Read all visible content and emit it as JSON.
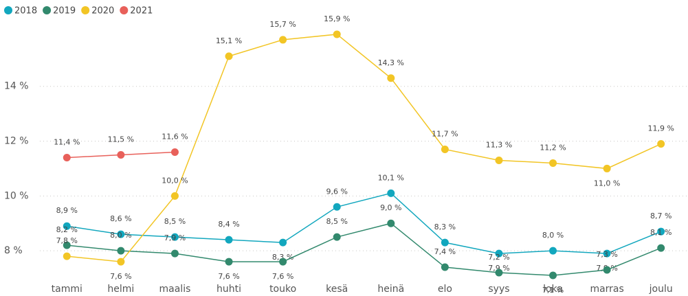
{
  "chart_data": {
    "type": "line",
    "categories": [
      "tammi",
      "helmi",
      "maalis",
      "huhti",
      "touko",
      "kesä",
      "heinä",
      "elo",
      "syys",
      "loka",
      "marras",
      "joulu"
    ],
    "series": [
      {
        "name": "2018",
        "color": "#12A7BE",
        "values": [
          8.9,
          8.6,
          8.5,
          8.4,
          8.3,
          9.6,
          10.1,
          8.3,
          7.9,
          8.0,
          7.9,
          8.7
        ],
        "value_labels": [
          "8,9 %",
          "8,6 %",
          "8,5 %",
          "8,4 %",
          "8,3 %",
          "9,6 %",
          "10,1 %",
          "8,3 %",
          "7,9 %",
          "8,0 %",
          "7,9 %",
          "8,7 %"
        ]
      },
      {
        "name": "2019",
        "color": "#32896D",
        "values": [
          8.2,
          8.0,
          7.9,
          7.6,
          7.6,
          8.5,
          9.0,
          7.4,
          7.2,
          7.1,
          7.3,
          8.1
        ],
        "value_labels": [
          "8,2 %",
          "8,0 %",
          "7,9 %",
          "7,6 %",
          "7,6 %",
          "8,5 %",
          "9,0 %",
          "7,4 %",
          "7,2 %",
          "7,1 %",
          "7,3 %",
          "8,1 %"
        ]
      },
      {
        "name": "2020",
        "color": "#F2C525",
        "values": [
          7.8,
          7.6,
          10.0,
          15.1,
          15.7,
          15.9,
          14.3,
          11.7,
          11.3,
          11.2,
          11.0,
          11.9
        ],
        "value_labels": [
          "7,8 %",
          "7,6 %",
          "10,0 %",
          "15,1 %",
          "15,7 %",
          "15,9 %",
          "14,3 %",
          "11,7 %",
          "11,3 %",
          "11,2 %",
          "11,0 %",
          "11,9 %"
        ]
      },
      {
        "name": "2021",
        "color": "#E8605A",
        "values": [
          11.4,
          11.5,
          11.6,
          null,
          null,
          null,
          null,
          null,
          null,
          null,
          null,
          null
        ],
        "value_labels": [
          "11,4 %",
          "11,5 %",
          "11,6 %",
          null,
          null,
          null,
          null,
          null,
          null,
          null,
          null,
          null
        ]
      }
    ],
    "ylim": [
      7.0,
      16.4
    ],
    "yticks": [
      {
        "value": 8,
        "label": "8 %"
      },
      {
        "value": 10,
        "label": "10 %"
      },
      {
        "value": 12,
        "label": "12 %"
      },
      {
        "value": 14,
        "label": "14 %"
      }
    ],
    "grid": true,
    "legend": "top-left"
  }
}
